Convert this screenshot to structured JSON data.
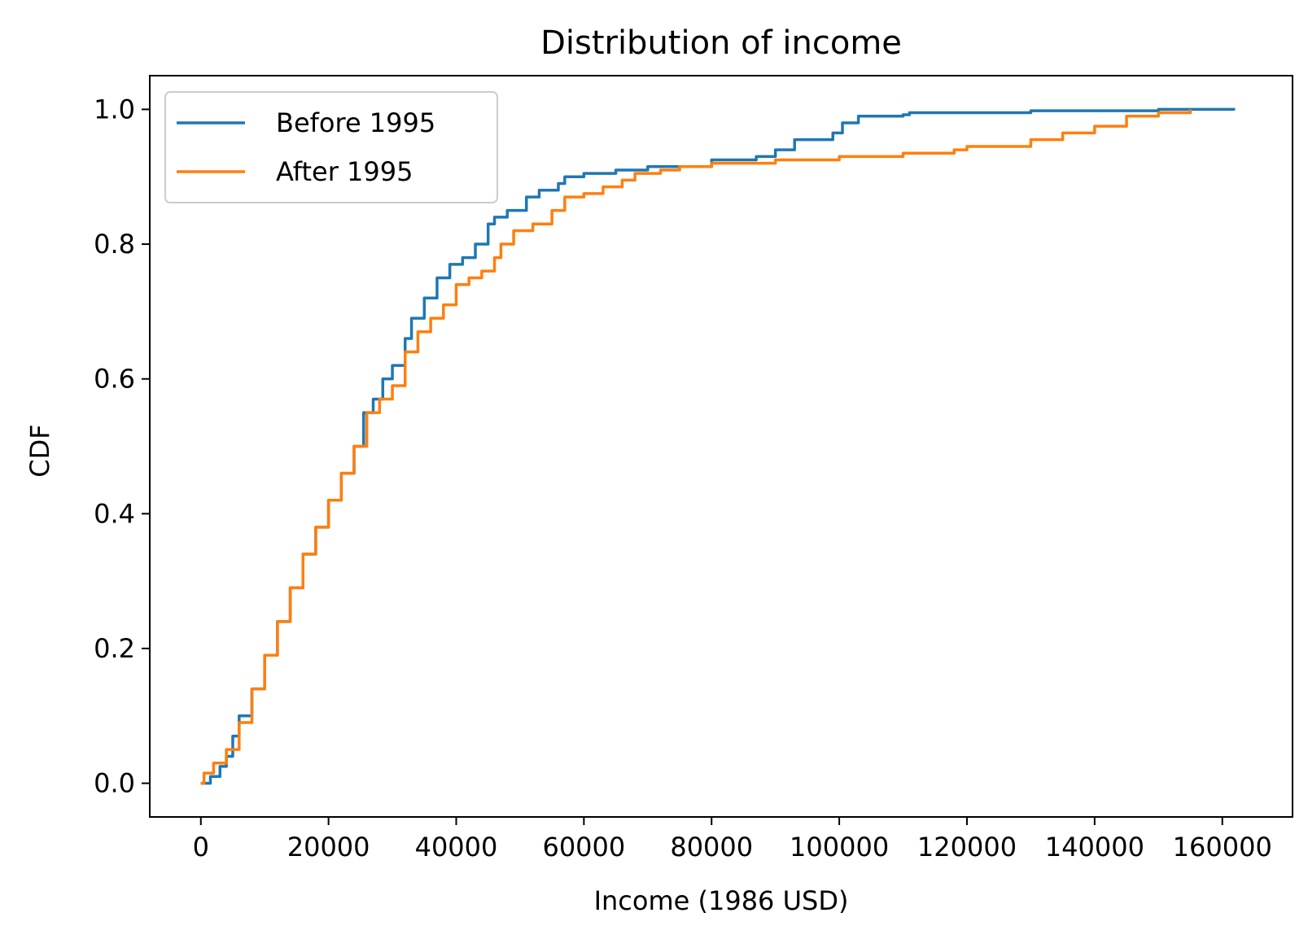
{
  "chart_data": {
    "type": "line",
    "title": "Distribution of income",
    "xlabel": "Income (1986 USD)",
    "ylabel": "CDF",
    "xlim": [
      -8000,
      171000
    ],
    "ylim": [
      -0.05,
      1.05
    ],
    "xticks": [
      0,
      20000,
      40000,
      60000,
      80000,
      100000,
      120000,
      140000,
      160000
    ],
    "xtick_labels": [
      "0",
      "20000",
      "40000",
      "60000",
      "80000",
      "100000",
      "120000",
      "140000",
      "160000"
    ],
    "yticks": [
      0.0,
      0.2,
      0.4,
      0.6,
      0.8,
      1.0
    ],
    "ytick_labels": [
      "0.0",
      "0.2",
      "0.4",
      "0.6",
      "0.8",
      "1.0"
    ],
    "grid": false,
    "legend_position": "top-left",
    "series": [
      {
        "name": "Before 1995",
        "color": "#1f77b4",
        "points": [
          [
            0,
            0.0
          ],
          [
            1500,
            0.01
          ],
          [
            3000,
            0.025
          ],
          [
            4000,
            0.04
          ],
          [
            5000,
            0.07
          ],
          [
            6000,
            0.1
          ],
          [
            8000,
            0.14
          ],
          [
            10000,
            0.19
          ],
          [
            12000,
            0.24
          ],
          [
            14000,
            0.29
          ],
          [
            16000,
            0.34
          ],
          [
            18000,
            0.38
          ],
          [
            20000,
            0.42
          ],
          [
            22000,
            0.46
          ],
          [
            24000,
            0.5
          ],
          [
            25500,
            0.55
          ],
          [
            27000,
            0.57
          ],
          [
            28500,
            0.6
          ],
          [
            30000,
            0.62
          ],
          [
            32000,
            0.66
          ],
          [
            33000,
            0.69
          ],
          [
            35000,
            0.72
          ],
          [
            37000,
            0.75
          ],
          [
            39000,
            0.77
          ],
          [
            41000,
            0.78
          ],
          [
            43000,
            0.8
          ],
          [
            45000,
            0.83
          ],
          [
            46000,
            0.84
          ],
          [
            48000,
            0.85
          ],
          [
            51000,
            0.87
          ],
          [
            53000,
            0.88
          ],
          [
            56000,
            0.89
          ],
          [
            57000,
            0.9
          ],
          [
            60000,
            0.905
          ],
          [
            65000,
            0.91
          ],
          [
            70000,
            0.915
          ],
          [
            80000,
            0.925
          ],
          [
            87000,
            0.93
          ],
          [
            90000,
            0.94
          ],
          [
            93000,
            0.955
          ],
          [
            99000,
            0.965
          ],
          [
            100500,
            0.98
          ],
          [
            103000,
            0.99
          ],
          [
            110000,
            0.992
          ],
          [
            111000,
            0.995
          ],
          [
            130000,
            0.998
          ],
          [
            150000,
            1.0
          ],
          [
            162000,
            1.0
          ]
        ]
      },
      {
        "name": "After 1995",
        "color": "#ff7f0e",
        "points": [
          [
            0,
            0.0
          ],
          [
            500,
            0.015
          ],
          [
            2000,
            0.03
          ],
          [
            4000,
            0.05
          ],
          [
            6000,
            0.09
          ],
          [
            8000,
            0.14
          ],
          [
            10000,
            0.19
          ],
          [
            12000,
            0.24
          ],
          [
            14000,
            0.29
          ],
          [
            16000,
            0.34
          ],
          [
            18000,
            0.38
          ],
          [
            20000,
            0.42
          ],
          [
            22000,
            0.46
          ],
          [
            24000,
            0.5
          ],
          [
            26000,
            0.55
          ],
          [
            28000,
            0.57
          ],
          [
            30000,
            0.59
          ],
          [
            32000,
            0.64
          ],
          [
            34000,
            0.67
          ],
          [
            36000,
            0.69
          ],
          [
            38000,
            0.71
          ],
          [
            40000,
            0.74
          ],
          [
            42000,
            0.75
          ],
          [
            44000,
            0.76
          ],
          [
            46000,
            0.78
          ],
          [
            47000,
            0.8
          ],
          [
            49000,
            0.82
          ],
          [
            52000,
            0.83
          ],
          [
            55000,
            0.85
          ],
          [
            57000,
            0.87
          ],
          [
            60000,
            0.875
          ],
          [
            63000,
            0.885
          ],
          [
            66000,
            0.895
          ],
          [
            68000,
            0.905
          ],
          [
            72000,
            0.91
          ],
          [
            75000,
            0.915
          ],
          [
            80000,
            0.92
          ],
          [
            90000,
            0.925
          ],
          [
            100000,
            0.93
          ],
          [
            110000,
            0.935
          ],
          [
            118000,
            0.94
          ],
          [
            120000,
            0.945
          ],
          [
            130000,
            0.955
          ],
          [
            135000,
            0.965
          ],
          [
            140000,
            0.975
          ],
          [
            145000,
            0.99
          ],
          [
            150000,
            0.995
          ],
          [
            155000,
            1.0
          ]
        ]
      }
    ]
  }
}
